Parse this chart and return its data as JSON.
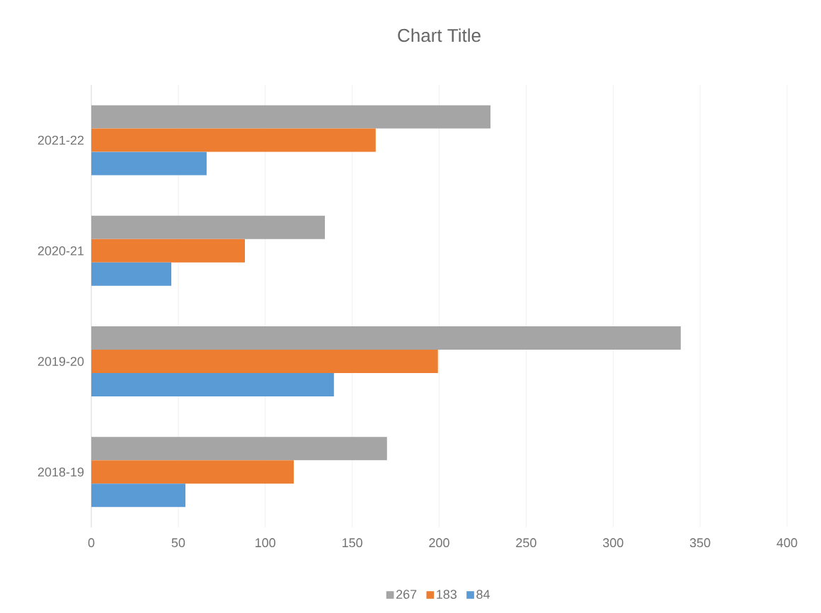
{
  "chart_data": {
    "type": "bar",
    "orientation": "horizontal",
    "title": "Chart Title",
    "categories": [
      "2021-22",
      "2020-21",
      "2019-20",
      "2018-19"
    ],
    "series": [
      {
        "name": "267",
        "color": "#a5a5a5",
        "values": [
          229.5,
          134.3,
          338.9,
          170
        ]
      },
      {
        "name": "183",
        "color": "#ed7d31",
        "values": [
          163.5,
          88.3,
          199.3,
          116.4
        ]
      },
      {
        "name": "84",
        "color": "#5b9bd5",
        "values": [
          66.3,
          46,
          139.5,
          54.1
        ]
      }
    ],
    "xlim": [
      0,
      400
    ],
    "xticks": [
      0,
      50,
      100,
      150,
      200,
      250,
      300,
      350,
      400
    ],
    "grid": "x",
    "legend": "bottom"
  }
}
